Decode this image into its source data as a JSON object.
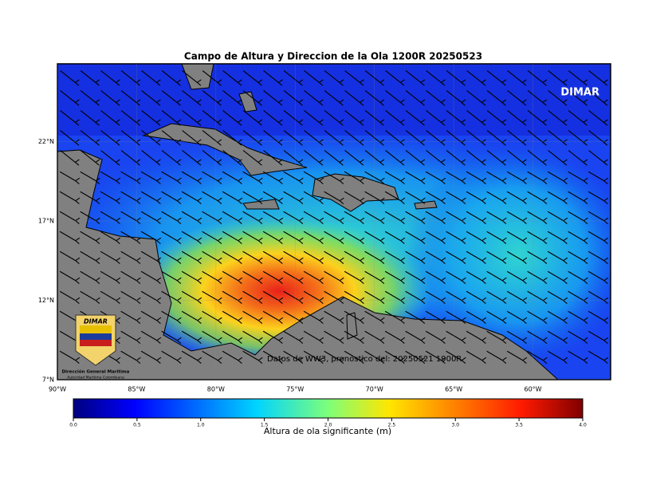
{
  "map": {
    "title": "Campo de Altura y Direccion de la Ola 1200R 20250523",
    "watermark": "DIMAR",
    "source_note": "Datos de WW3, pronostico del: 20250521 1900R",
    "logo": {
      "name": "DIMAR",
      "org": "Dirección General Marítima",
      "subtitle": "Autoridad Marítima Colombiana"
    },
    "lon_range": [
      -90,
      -55.1
    ],
    "lat_range": [
      7,
      26.9
    ],
    "lon_ticks": [
      {
        "value": -90,
        "label": "90°W"
      },
      {
        "value": -85,
        "label": "85°W"
      },
      {
        "value": -80,
        "label": "80°W"
      },
      {
        "value": -75,
        "label": "75°W"
      },
      {
        "value": -70,
        "label": "70°W"
      },
      {
        "value": -65,
        "label": "65°W"
      },
      {
        "value": -60,
        "label": "60°W"
      }
    ],
    "lat_ticks": [
      {
        "value": 7,
        "label": "7°N"
      },
      {
        "value": 12,
        "label": "12°N"
      },
      {
        "value": 17,
        "label": "17°N"
      },
      {
        "value": 22,
        "label": "22°N"
      }
    ],
    "colorbar": {
      "label": "Altura de ola significante (m)",
      "range": [
        0,
        4
      ],
      "ticks": [
        {
          "value": 0,
          "label": "0.0"
        },
        {
          "value": 0.5,
          "label": "0.5"
        },
        {
          "value": 1,
          "label": "1.0"
        },
        {
          "value": 1.5,
          "label": "1.5"
        },
        {
          "value": 2,
          "label": "2.0"
        },
        {
          "value": 2.5,
          "label": "2.5"
        },
        {
          "value": 3,
          "label": "3.0"
        },
        {
          "value": 3.5,
          "label": "3.5"
        },
        {
          "value": 4,
          "label": "4.0"
        }
      ]
    }
  }
}
